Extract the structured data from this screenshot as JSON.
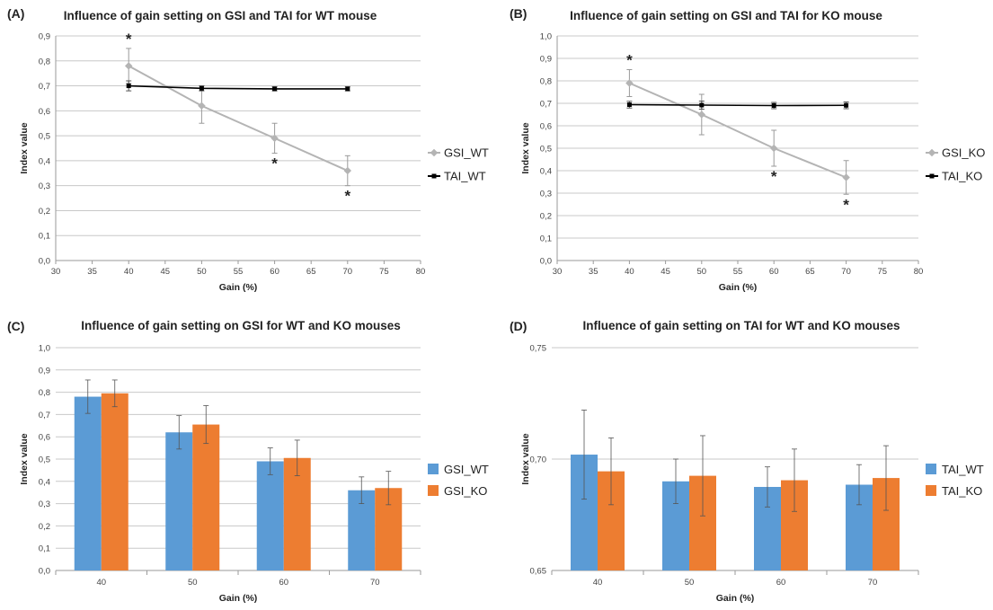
{
  "chart_data": [
    {
      "panel": "(A)",
      "type": "line",
      "title": "Influence of gain setting on GSI and TAI  for WT mouse",
      "xlabel": "Gain (%)",
      "ylabel": "Index value",
      "xlim": [
        30,
        80
      ],
      "ylim": [
        0,
        0.9
      ],
      "xticks": [
        30,
        35,
        40,
        45,
        50,
        55,
        60,
        65,
        70,
        75,
        80
      ],
      "yticks": [
        "0,0",
        "0,1",
        "0,2",
        "0,3",
        "0,4",
        "0,5",
        "0,6",
        "0,7",
        "0,8",
        "0,9"
      ],
      "grid": "horizontal",
      "legend": "right",
      "series": [
        {
          "name": "GSI_WT",
          "color": "#b4b4b4",
          "x": [
            40,
            50,
            60,
            70
          ],
          "y": [
            0.78,
            0.62,
            0.49,
            0.36
          ],
          "err": [
            0.07,
            0.07,
            0.06,
            0.06
          ],
          "stars": [
            true,
            false,
            true,
            true
          ]
        },
        {
          "name": "TAI_WT",
          "color": "#000000",
          "x": [
            40,
            50,
            60,
            70
          ],
          "y": [
            0.7,
            0.69,
            0.688,
            0.688
          ],
          "err": [
            0.02,
            0.01,
            0.008,
            0.008
          ]
        }
      ],
      "annotations": [
        "*"
      ]
    },
    {
      "panel": "(B)",
      "type": "line",
      "title": "Influence of gain setting on GSI and TAI  for KO mouse",
      "xlabel": "Gain (%)",
      "ylabel": "Index value",
      "xlim": [
        30,
        80
      ],
      "ylim": [
        0,
        1.0
      ],
      "xticks": [
        30,
        35,
        40,
        45,
        50,
        55,
        60,
        65,
        70,
        75,
        80
      ],
      "yticks": [
        "0,0",
        "0,1",
        "0,2",
        "0,3",
        "0,4",
        "0,5",
        "0,6",
        "0,7",
        "0,8",
        "0,9",
        "1,0"
      ],
      "grid": "horizontal",
      "legend": "right",
      "series": [
        {
          "name": "GSI_KO",
          "color": "#b4b4b4",
          "x": [
            40,
            50,
            60,
            70
          ],
          "y": [
            0.79,
            0.65,
            0.5,
            0.37
          ],
          "err": [
            0.06,
            0.09,
            0.08,
            0.075
          ],
          "stars": [
            true,
            false,
            true,
            true
          ]
        },
        {
          "name": "TAI_KO",
          "color": "#000000",
          "x": [
            40,
            50,
            60,
            70
          ],
          "y": [
            0.694,
            0.692,
            0.69,
            0.691
          ],
          "err": [
            0.015,
            0.018,
            0.014,
            0.015
          ]
        }
      ],
      "annotations": [
        "*"
      ]
    },
    {
      "panel": "(C)",
      "type": "bar",
      "title": "Influence of gain setting on GSI for WT and KO mouses",
      "xlabel": "Gain (%)",
      "ylabel": "Index value",
      "categories": [
        "40",
        "50",
        "60",
        "70"
      ],
      "ylim": [
        0,
        1.0
      ],
      "yticks": [
        "0,0",
        "0,1",
        "0,2",
        "0,3",
        "0,4",
        "0,5",
        "0,6",
        "0,7",
        "0,8",
        "0,9",
        "1,0"
      ],
      "grid": "horizontal",
      "legend": "right",
      "series": [
        {
          "name": "GSI_WT",
          "color": "#5b9bd5",
          "values": [
            0.78,
            0.62,
            0.49,
            0.36
          ],
          "err": [
            0.075,
            0.075,
            0.06,
            0.06
          ]
        },
        {
          "name": "GSI_KO",
          "color": "#ed7d31",
          "values": [
            0.795,
            0.655,
            0.505,
            0.37
          ],
          "err": [
            0.06,
            0.085,
            0.08,
            0.075
          ]
        }
      ]
    },
    {
      "panel": "(D)",
      "type": "bar",
      "title": "Influence of gain setting on TAI  for  WT and KO mouses",
      "xlabel": "Gain (%)",
      "ylabel": "Index value",
      "categories": [
        "40",
        "50",
        "60",
        "70"
      ],
      "ylim": [
        0.65,
        0.75
      ],
      "yticks": [
        "0,65",
        "0,70",
        "0,75"
      ],
      "grid": "horizontal",
      "legend": "right",
      "series": [
        {
          "name": "TAI_WT",
          "color": "#5b9bd5",
          "values": [
            0.702,
            0.69,
            0.6875,
            0.6885
          ],
          "err": [
            0.02,
            0.01,
            0.009,
            0.009
          ]
        },
        {
          "name": "TAI_KO",
          "color": "#ed7d31",
          "values": [
            0.6945,
            0.6925,
            0.6905,
            0.6915
          ],
          "err": [
            0.015,
            0.018,
            0.014,
            0.0145
          ]
        }
      ]
    }
  ]
}
